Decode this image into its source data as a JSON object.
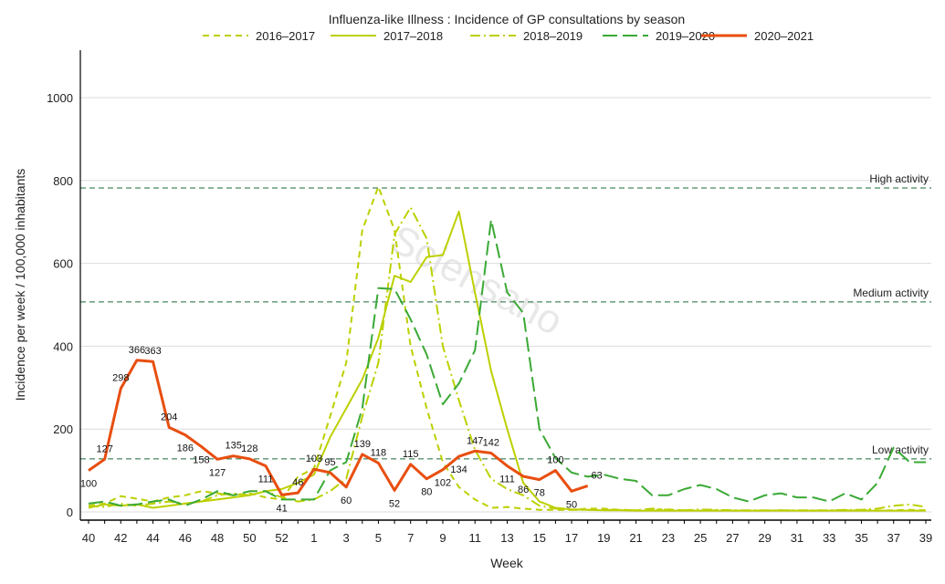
{
  "chart_data": {
    "type": "line",
    "title": "Influenza-like Illness : Incidence of GP consultations by season",
    "xlabel": "Week",
    "ylabel": "Incidence per week / 100,000 inhabitants",
    "ylim": [
      0,
      1100
    ],
    "yticks": [
      0,
      200,
      400,
      600,
      800,
      1000
    ],
    "grid": true,
    "legend": "top",
    "watermark": "Sciensano",
    "weeks": [
      40,
      41,
      42,
      43,
      44,
      45,
      46,
      47,
      48,
      49,
      50,
      51,
      52,
      53,
      1,
      2,
      3,
      4,
      5,
      6,
      7,
      8,
      9,
      10,
      11,
      12,
      13,
      14,
      15,
      16,
      17,
      18,
      19,
      20,
      21,
      22,
      23,
      24,
      25,
      26,
      27,
      28,
      29,
      30,
      31,
      32,
      33,
      34,
      35,
      36,
      37,
      38,
      39
    ],
    "xtick_labels": [
      "40",
      "42",
      "44",
      "46",
      "48",
      "50",
      "52",
      "1",
      "3",
      "5",
      "7",
      "9",
      "11",
      "13",
      "15",
      "17",
      "19",
      "21",
      "23",
      "25",
      "27",
      "29",
      "31",
      "33",
      "35",
      "37",
      "39"
    ],
    "thresholds": [
      {
        "label": "High activity",
        "value": 782
      },
      {
        "label": "Medium activity",
        "value": 507
      },
      {
        "label": "Low activity",
        "value": 128
      }
    ],
    "series": [
      {
        "name": "2016–2017",
        "color": "#bcd000",
        "style": "dashed",
        "values": [
          15,
          20,
          38,
          32,
          25,
          35,
          40,
          50,
          45,
          40,
          45,
          35,
          30,
          85,
          105,
          230,
          360,
          680,
          785,
          680,
          400,
          250,
          120,
          60,
          30,
          10,
          12,
          8,
          5,
          5,
          5,
          8,
          8,
          5,
          4,
          5,
          6,
          4,
          3,
          4,
          3,
          3,
          3,
          4,
          3,
          3,
          3,
          4,
          4,
          3,
          4,
          5,
          4
        ]
      },
      {
        "name": "2017–2018",
        "color": "#bcd000",
        "style": "solid",
        "values": [
          10,
          18,
          15,
          18,
          10,
          15,
          20,
          25,
          30,
          35,
          40,
          50,
          55,
          70,
          90,
          180,
          250,
          320,
          420,
          570,
          555,
          615,
          620,
          725,
          530,
          340,
          200,
          70,
          25,
          10,
          6,
          5,
          4,
          4,
          3,
          3,
          3,
          3,
          3,
          3,
          3,
          3,
          3,
          3,
          3,
          3,
          3,
          3,
          3,
          3,
          3,
          3,
          3
        ]
      },
      {
        "name": "2018–2019",
        "color": "#bcd000",
        "style": "dashdot",
        "values": [
          15,
          12,
          20,
          15,
          20,
          25,
          20,
          25,
          40,
          45,
          40,
          50,
          35,
          25,
          30,
          50,
          80,
          230,
          360,
          670,
          735,
          660,
          400,
          270,
          150,
          80,
          55,
          40,
          15,
          8,
          5,
          5,
          5,
          5,
          4,
          8,
          5,
          4,
          6,
          5,
          4,
          4,
          4,
          4,
          4,
          4,
          4,
          5,
          5,
          8,
          15,
          18,
          12
        ]
      },
      {
        "name": "2019–2020",
        "color": "#3aa935",
        "style": "longdash",
        "values": [
          20,
          25,
          15,
          18,
          25,
          30,
          15,
          30,
          50,
          40,
          50,
          50,
          30,
          30,
          30,
          100,
          120,
          250,
          540,
          538,
          465,
          380,
          260,
          310,
          390,
          705,
          530,
          480,
          200,
          130,
          95,
          85,
          90,
          80,
          75,
          40,
          40,
          55,
          65,
          55,
          35,
          25,
          40,
          45,
          35,
          35,
          25,
          45,
          30,
          70,
          155,
          120,
          120
        ]
      },
      {
        "name": "2020–2021",
        "color": "#e84e0f",
        "style": "bold",
        "values": [
          100,
          127,
          298,
          366,
          363,
          204,
          186,
          158,
          127,
          135,
          128,
          111,
          41,
          46,
          103,
          95,
          60,
          139,
          118,
          52,
          115,
          80,
          102,
          134,
          147,
          142,
          111,
          86,
          78,
          100,
          50,
          63
        ]
      }
    ]
  }
}
